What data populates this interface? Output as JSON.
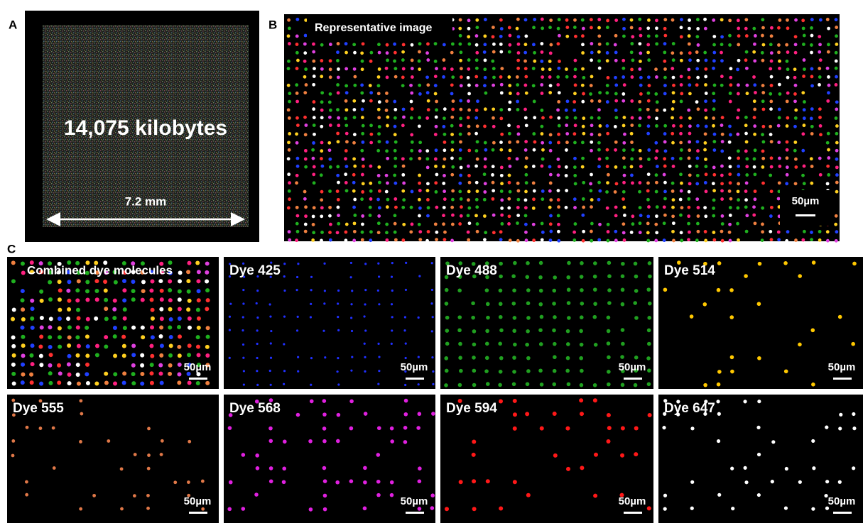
{
  "panel_labels": [
    "A",
    "B",
    "C"
  ],
  "panel_a": {
    "text": "14,075 kilobytes",
    "dimension": "7.2 mm"
  },
  "panel_b": {
    "label": "Representative image",
    "scale_bar": "50µm"
  },
  "panel_c": [
    {
      "label": "Combined dye molecules",
      "scale_bar": "50µm"
    },
    {
      "label": "Dye 425",
      "scale_bar": "50µm"
    },
    {
      "label": "Dye 488",
      "scale_bar": "50µm"
    },
    {
      "label": "Dye 514",
      "scale_bar": "50µm"
    },
    {
      "label": "Dye 555",
      "scale_bar": "50µm"
    },
    {
      "label": "Dye 568",
      "scale_bar": "50µm"
    },
    {
      "label": "Dye 594",
      "scale_bar": "50µm"
    },
    {
      "label": "Dye 647",
      "scale_bar": "50µm"
    }
  ]
}
